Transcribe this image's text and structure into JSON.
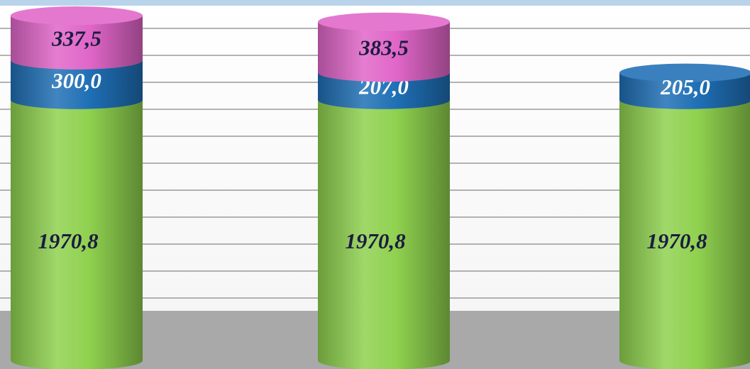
{
  "chart_data": {
    "type": "cylinder-stacked",
    "categories": [
      null,
      null,
      null
    ],
    "series": [
      {
        "color": "#8fd14f",
        "values": [
          1970.8,
          1970.8,
          1970.8
        ],
        "value_labels": [
          "1970,8",
          "1970,8",
          "1970,8"
        ]
      },
      {
        "color": "#1f6fb5",
        "values": [
          300.0,
          207.0,
          205.0
        ],
        "value_labels": [
          "300,0",
          "207,0",
          "205,0"
        ]
      },
      {
        "color": "#e066c8",
        "values": [
          337.5,
          383.5,
          null
        ],
        "value_labels": [
          "337,5",
          "383,5",
          null
        ]
      }
    ]
  }
}
